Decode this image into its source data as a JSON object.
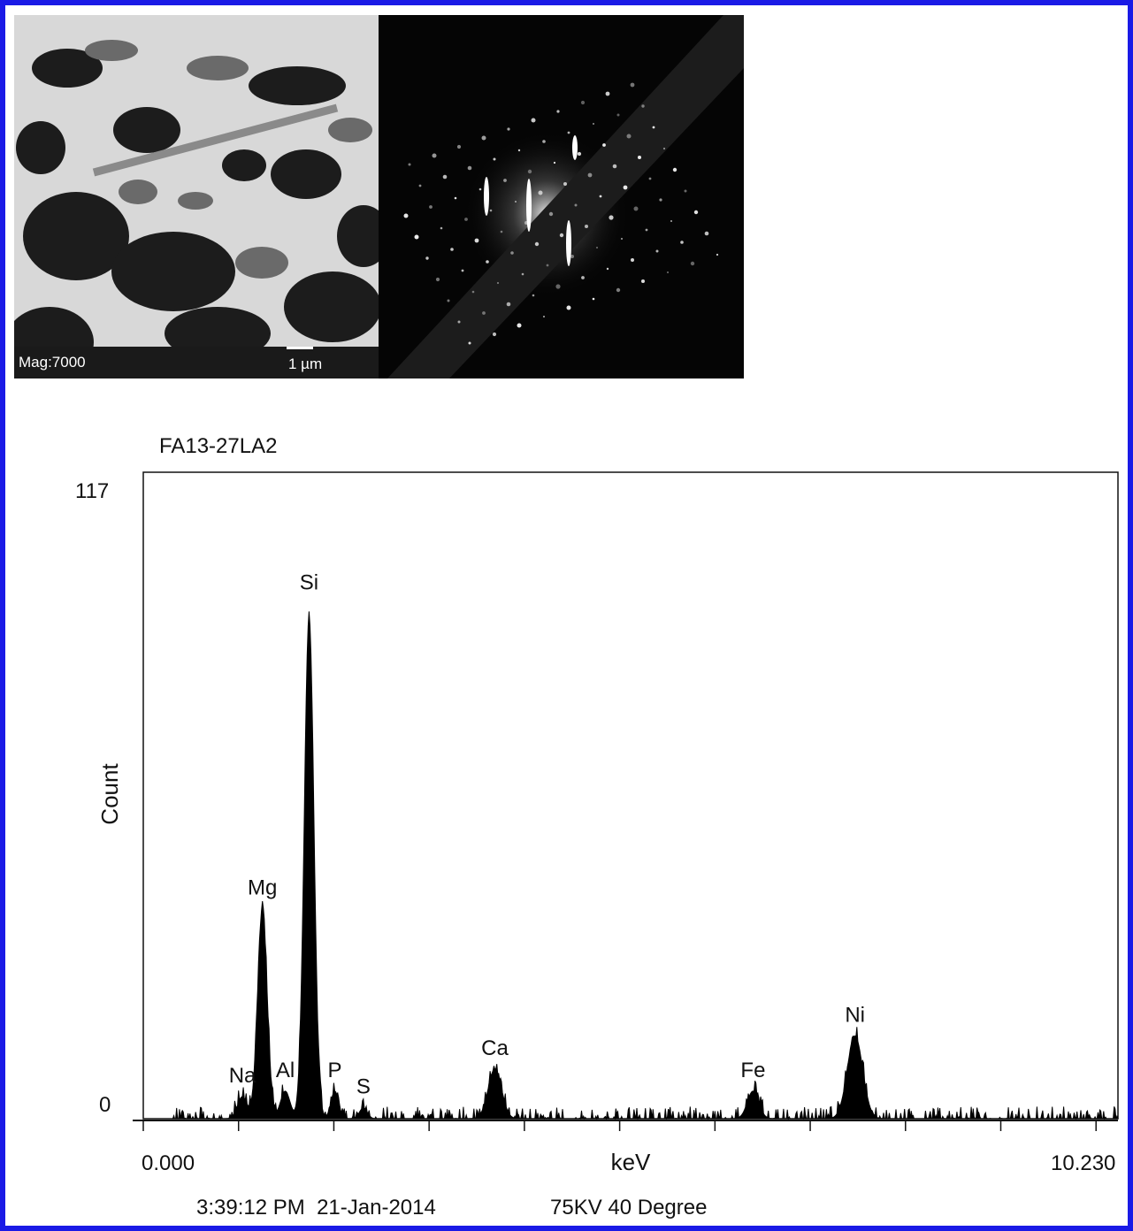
{
  "micrograph": {
    "magnification_label": "Mag:7000",
    "scale_bar_label": "1 µm"
  },
  "chart_data": {
    "type": "area",
    "title": "FA13-27LA2",
    "xlabel": "keV",
    "ylabel": "Count",
    "xlim": [
      0.0,
      10.23
    ],
    "ylim": [
      0,
      117
    ],
    "x_tick_labels": [
      "0.000",
      "10.230"
    ],
    "y_tick_labels": [
      "117",
      "0"
    ],
    "footer_left": "3:39:12 PM  21-Jan-2014",
    "footer_right": "75KV 40 Degree",
    "peaks": [
      {
        "label": "Na",
        "energy": 1.04,
        "count": 4
      },
      {
        "label": "Mg",
        "energy": 1.25,
        "count": 38
      },
      {
        "label": "Al",
        "energy": 1.49,
        "count": 5
      },
      {
        "label": "Si",
        "energy": 1.74,
        "count": 91
      },
      {
        "label": "P",
        "energy": 2.01,
        "count": 5
      },
      {
        "label": "S",
        "energy": 2.31,
        "count": 2
      },
      {
        "label": "Ca",
        "energy": 3.69,
        "count": 9
      },
      {
        "label": "Fe",
        "energy": 6.4,
        "count": 5
      },
      {
        "label": "Ni",
        "energy": 7.47,
        "count": 15
      }
    ],
    "grid": false
  }
}
